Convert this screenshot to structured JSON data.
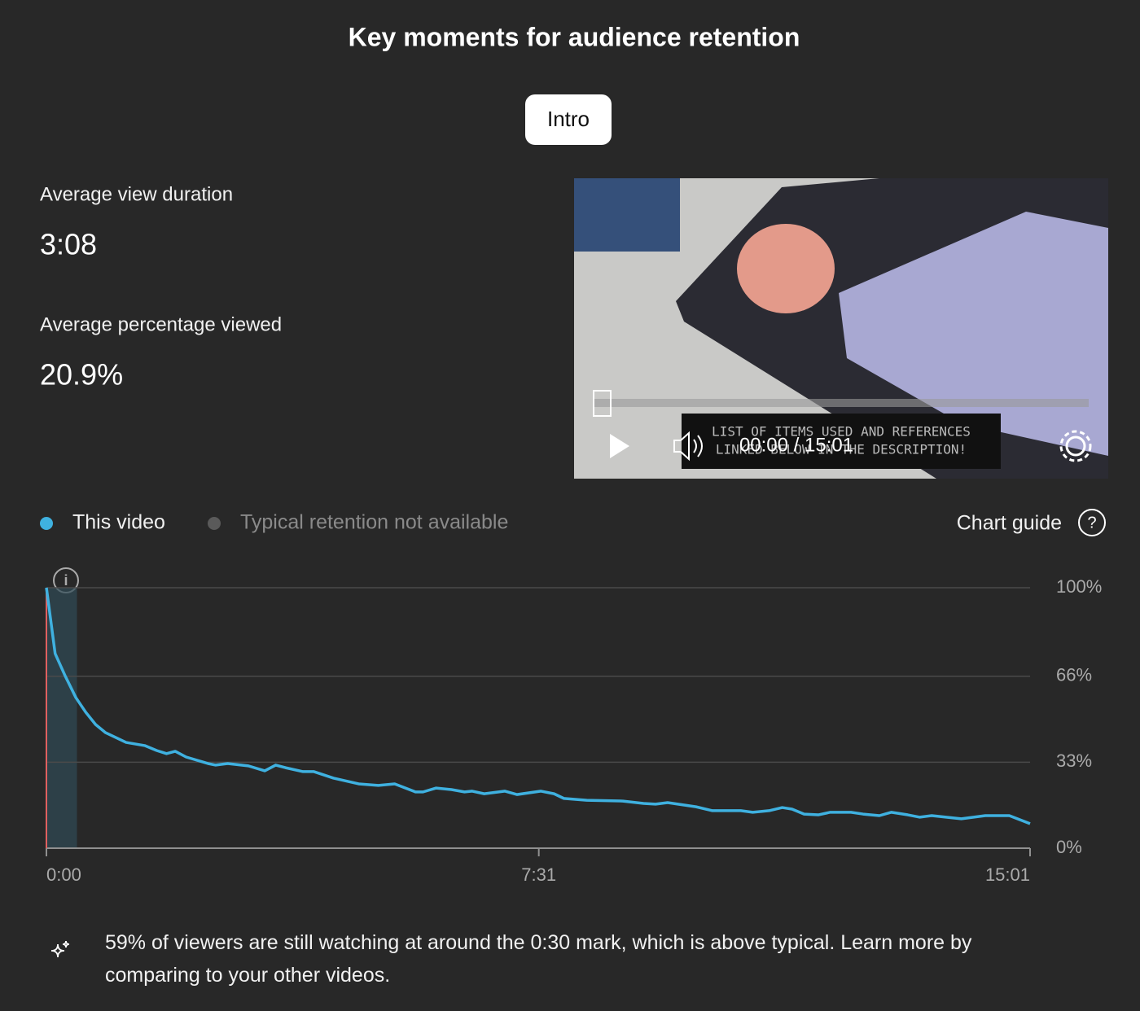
{
  "header": {
    "title": "Key moments for audience retention",
    "chip": "Intro"
  },
  "stats": [
    {
      "label": "Average view duration",
      "value": "3:08"
    },
    {
      "label": "Average percentage viewed",
      "value": "20.9%"
    }
  ],
  "player": {
    "caption": [
      "LIST OF ITEMS USED AND REFERENCES",
      "LINKED BELOW IN THE DESCRIPTION!"
    ],
    "time": "00:00 / 15:01"
  },
  "chart_data": {
    "type": "line",
    "x": [
      0,
      8,
      17,
      27,
      36,
      45,
      54,
      73,
      90,
      101,
      110,
      118,
      128,
      148,
      155,
      166,
      185,
      200,
      210,
      219,
      235,
      245,
      263,
      286,
      304,
      319,
      338,
      345,
      357,
      371,
      383,
      390,
      401,
      420,
      431,
      453,
      465,
      474,
      495,
      528,
      547,
      558,
      569,
      595,
      610,
      636,
      647,
      662,
      674,
      683,
      694,
      707,
      718,
      737,
      748,
      763,
      774,
      789,
      800,
      811,
      838,
      860,
      882,
      901
    ],
    "series": [
      {
        "name": "This video",
        "color": "#3fb1e0",
        "values": [
          100,
          74.7,
          66.3,
          57.8,
          52.2,
          47.5,
          44.4,
          40.6,
          39.4,
          37.5,
          36.3,
          37.2,
          35,
          32.5,
          31.9,
          32.5,
          31.6,
          29.7,
          31.9,
          30.9,
          29.4,
          29.4,
          26.9,
          24.7,
          24.1,
          24.7,
          21.6,
          21.6,
          23.1,
          22.5,
          21.6,
          21.9,
          20.9,
          21.9,
          20.6,
          21.9,
          20.9,
          19.1,
          18.4,
          18.1,
          17.2,
          16.9,
          17.5,
          15.9,
          14.4,
          14.4,
          13.8,
          14.4,
          15.6,
          15,
          13.1,
          12.8,
          13.8,
          13.8,
          13.1,
          12.5,
          13.8,
          12.8,
          11.9,
          12.5,
          11.3,
          12.5,
          12.5,
          9.4
        ]
      }
    ],
    "unavailable_series": {
      "name": "Typical retention not available",
      "color": "#5a5a5a"
    },
    "chart_guide": "Chart guide",
    "highlight": [
      0,
      28
    ],
    "xlim": [
      0,
      901
    ],
    "xticks": [
      {
        "value": 0,
        "label": "0:00"
      },
      {
        "value": 451,
        "label": "7:31"
      },
      {
        "value": 901,
        "label": "15:01"
      }
    ],
    "ylim": [
      0,
      100
    ],
    "yticks": [
      {
        "value": 0,
        "label": "0%"
      },
      {
        "value": 33,
        "label": "33%"
      },
      {
        "value": 66,
        "label": "66%"
      },
      {
        "value": 100,
        "label": "100%"
      }
    ],
    "grid": true
  },
  "insight": "59% of viewers are still watching at around the 0:30 mark, which is above typical. Learn more by comparing to your other videos."
}
